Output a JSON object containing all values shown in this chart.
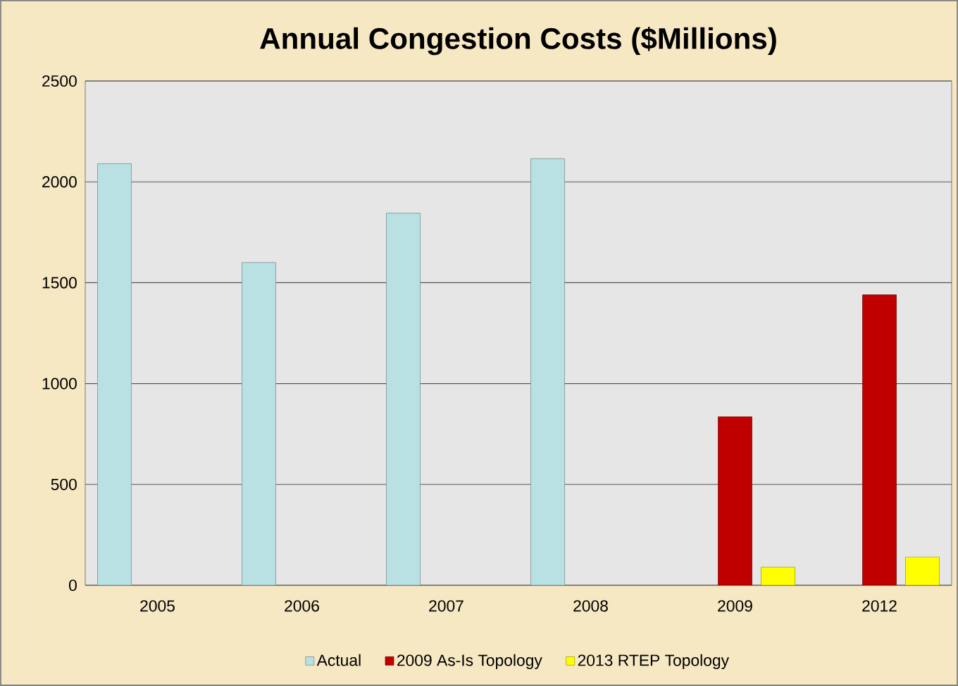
{
  "chart_data": {
    "type": "bar",
    "title": "Annual Congestion Costs ($Millions)",
    "categories": [
      "2005",
      "2006",
      "2007",
      "2008",
      "2009",
      "2012"
    ],
    "series": [
      {
        "name": "Actual",
        "color": "#b9e0e2",
        "values": [
          2090,
          1600,
          1845,
          2115,
          null,
          null
        ]
      },
      {
        "name": "2009 As-Is Topology",
        "color": "#c00000",
        "values": [
          null,
          null,
          null,
          null,
          835,
          1440
        ]
      },
      {
        "name": "2013 RTEP Topology",
        "color": "#ffff00",
        "values": [
          null,
          null,
          null,
          null,
          90,
          140
        ]
      }
    ],
    "ylim": [
      0,
      2500
    ],
    "yticks": [
      0,
      500,
      1000,
      1500,
      2000,
      2500
    ],
    "grid": "y",
    "legend": "bottom"
  }
}
